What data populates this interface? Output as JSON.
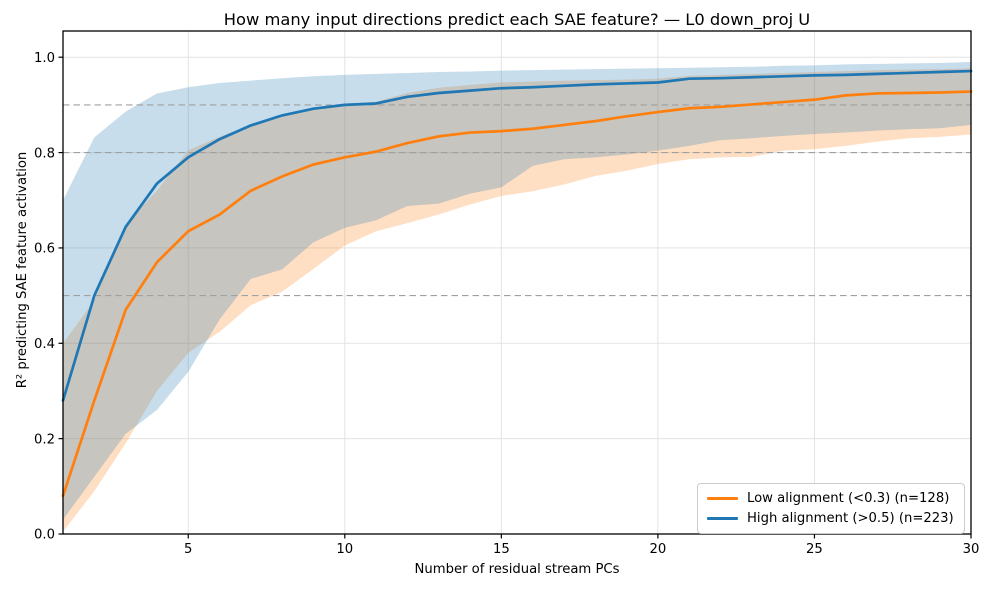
{
  "title": "How many input directions predict each SAE feature? — L0 down_proj U",
  "xlabel": "Number of residual stream PCs",
  "ylabel": "R² predicting SAE feature activation",
  "colors": {
    "orange": "#ff7f0e",
    "blue": "#1f77b4",
    "grid": "#e3e3e3",
    "dashed": "#a0a0a0",
    "spine": "#000000",
    "text": "#000000",
    "legend_border": "#cccccc"
  },
  "axes": {
    "x_ticks": [
      5,
      10,
      15,
      20,
      25,
      30
    ],
    "x_tick_labels": [
      "5",
      "10",
      "15",
      "20",
      "25",
      "30"
    ],
    "y_ticks": [
      0.0,
      0.2,
      0.4,
      0.6,
      0.8,
      1.0
    ],
    "y_tick_labels": [
      "0.0",
      "0.2",
      "0.4",
      "0.6",
      "0.8",
      "1.0"
    ]
  },
  "chart_data": {
    "type": "line",
    "title": "How many input directions predict each SAE feature? — L0 down_proj U",
    "xlabel": "Number of residual stream PCs",
    "ylabel": "R² predicting SAE feature activation",
    "xlim": [
      1,
      30
    ],
    "ylim": [
      0,
      1.055
    ],
    "grid": true,
    "legend_position": "lower right",
    "reference_hlines": [
      0.5,
      0.8,
      0.9
    ],
    "x": [
      1,
      2,
      3,
      4,
      5,
      6,
      7,
      8,
      9,
      10,
      11,
      12,
      13,
      14,
      15,
      16,
      17,
      18,
      19,
      20,
      21,
      22,
      23,
      24,
      25,
      26,
      27,
      28,
      29,
      30
    ],
    "series": [
      {
        "name": "Low alignment (<0.3) (n=128)",
        "color": "#ff7f0e",
        "band_opacity": 0.25,
        "values": [
          0.08,
          0.28,
          0.47,
          0.57,
          0.635,
          0.67,
          0.72,
          0.75,
          0.775,
          0.79,
          0.802,
          0.82,
          0.834,
          0.842,
          0.845,
          0.85,
          0.858,
          0.866,
          0.876,
          0.885,
          0.893,
          0.896,
          0.901,
          0.906,
          0.911,
          0.92,
          0.924,
          0.925,
          0.926,
          0.928
        ],
        "band_lower": [
          0.005,
          0.09,
          0.19,
          0.3,
          0.38,
          0.424,
          0.48,
          0.508,
          0.556,
          0.605,
          0.635,
          0.652,
          0.67,
          0.691,
          0.709,
          0.719,
          0.733,
          0.751,
          0.762,
          0.776,
          0.786,
          0.79,
          0.791,
          0.804,
          0.807,
          0.814,
          0.823,
          0.83,
          0.833,
          0.838
        ],
        "band_upper": [
          0.4,
          0.49,
          0.65,
          0.72,
          0.805,
          0.833,
          0.858,
          0.878,
          0.893,
          0.9,
          0.907,
          0.925,
          0.936,
          0.942,
          0.947,
          0.949,
          0.951,
          0.952,
          0.953,
          0.955,
          0.961,
          0.963,
          0.965,
          0.967,
          0.969,
          0.971,
          0.973,
          0.974,
          0.975,
          0.977
        ]
      },
      {
        "name": "High alignment (>0.5) (n=223)",
        "color": "#1f77b4",
        "band_opacity": 0.25,
        "values": [
          0.28,
          0.5,
          0.644,
          0.735,
          0.79,
          0.828,
          0.857,
          0.878,
          0.892,
          0.9,
          0.903,
          0.917,
          0.925,
          0.93,
          0.935,
          0.937,
          0.94,
          0.943,
          0.945,
          0.947,
          0.955,
          0.956,
          0.958,
          0.96,
          0.962,
          0.963,
          0.965,
          0.967,
          0.969,
          0.971
        ],
        "band_lower": [
          0.03,
          0.12,
          0.21,
          0.26,
          0.34,
          0.45,
          0.535,
          0.555,
          0.612,
          0.642,
          0.658,
          0.688,
          0.693,
          0.714,
          0.727,
          0.772,
          0.786,
          0.79,
          0.796,
          0.804,
          0.814,
          0.826,
          0.83,
          0.835,
          0.839,
          0.842,
          0.846,
          0.849,
          0.851,
          0.858
        ],
        "band_upper": [
          0.7,
          0.832,
          0.886,
          0.924,
          0.937,
          0.946,
          0.951,
          0.956,
          0.96,
          0.963,
          0.965,
          0.967,
          0.969,
          0.97,
          0.972,
          0.973,
          0.974,
          0.975,
          0.976,
          0.977,
          0.978,
          0.979,
          0.98,
          0.982,
          0.983,
          0.985,
          0.986,
          0.987,
          0.988,
          0.99
        ]
      }
    ]
  }
}
